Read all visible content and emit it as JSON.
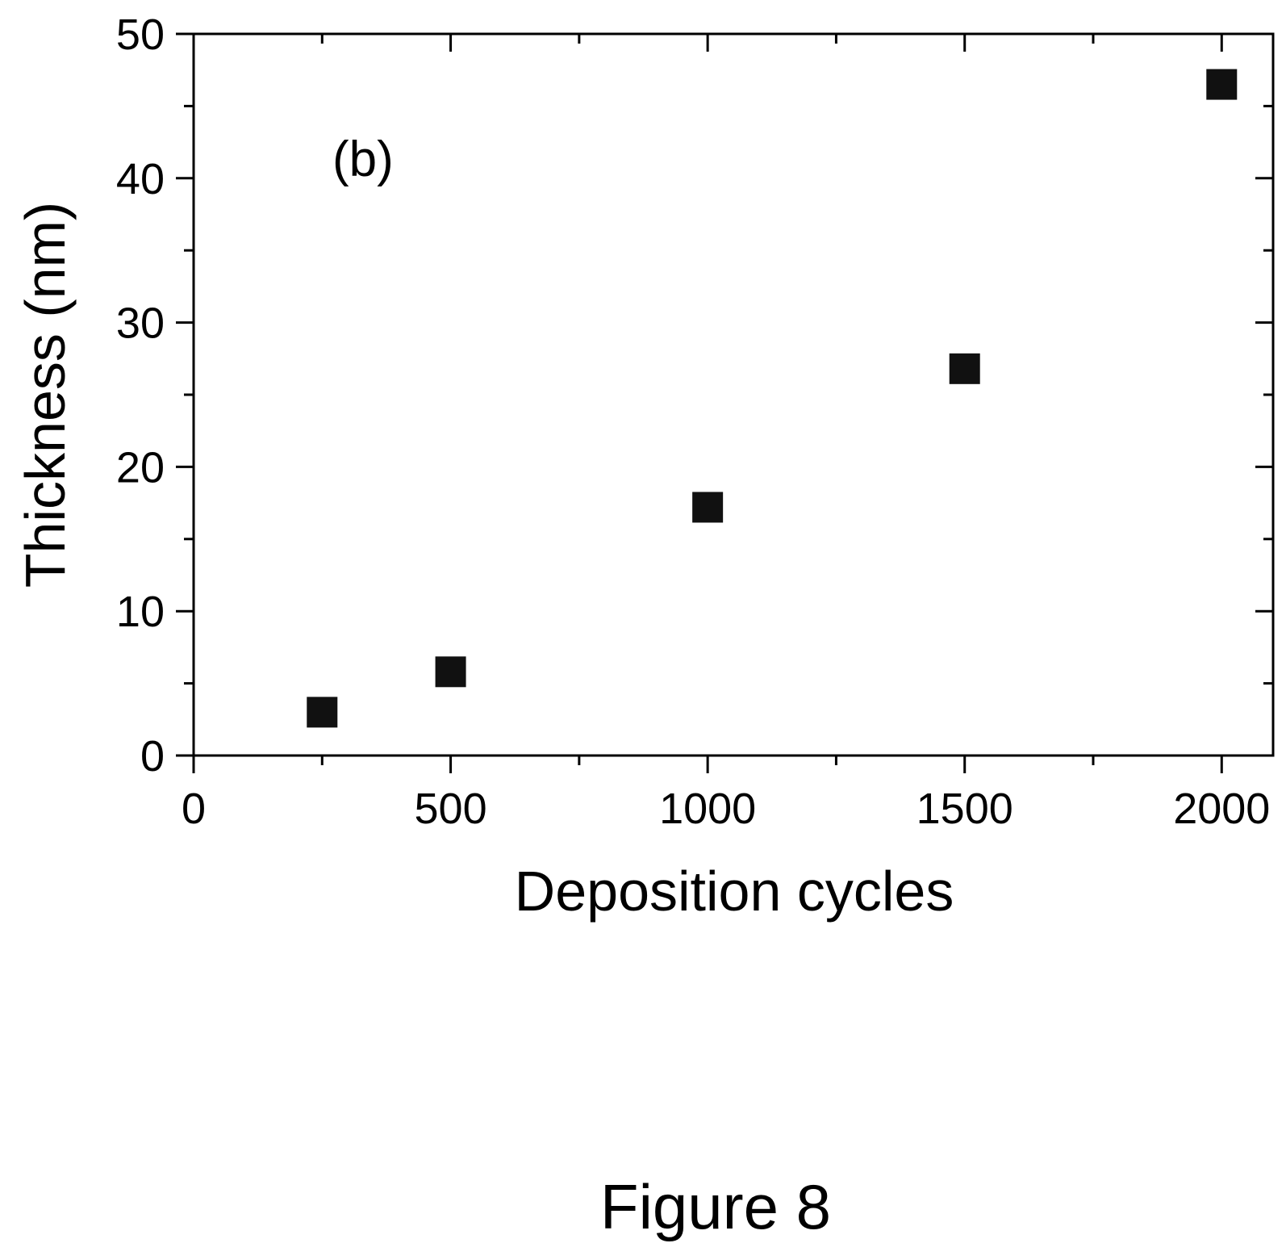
{
  "chart_data": {
    "type": "scatter",
    "annotation": "(b)",
    "xlabel": "Deposition cycles",
    "ylabel": "Thickness (nm)",
    "xlim": [
      0,
      2100
    ],
    "ylim": [
      0,
      50
    ],
    "x_ticks": [
      0,
      500,
      1000,
      1500,
      2000
    ],
    "y_ticks": [
      0,
      10,
      20,
      30,
      40,
      50
    ],
    "x_minor_step": 250,
    "y_minor_step": 5,
    "grid": false,
    "marker": "square",
    "marker_color": "#111111",
    "points": [
      {
        "x": 250,
        "y": 3.0
      },
      {
        "x": 500,
        "y": 5.8
      },
      {
        "x": 1000,
        "y": 17.2
      },
      {
        "x": 1500,
        "y": 26.8
      },
      {
        "x": 2000,
        "y": 46.5
      }
    ]
  },
  "caption": "Figure 8"
}
